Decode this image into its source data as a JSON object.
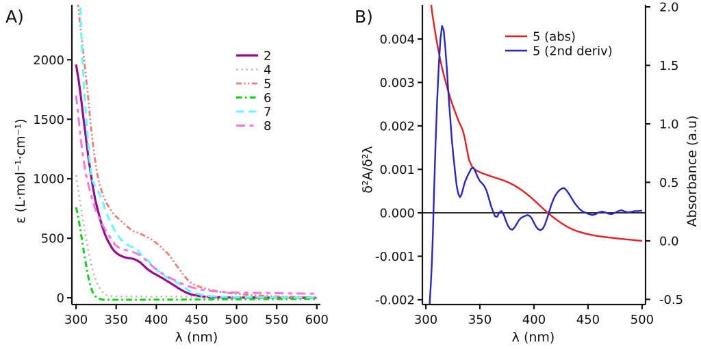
{
  "background": "#ffffff",
  "axis_color": "#111111",
  "chart_data": [
    {
      "id": "A",
      "type": "line",
      "panel_label": "A)",
      "xlabel": "λ (nm)",
      "ylabel": "ε (L·mol⁻¹·cm⁻¹)",
      "x_ticks": [
        300,
        350,
        400,
        450,
        500,
        550,
        600
      ],
      "y_ticks": [
        0,
        500,
        1000,
        1500,
        2000
      ],
      "x_range": [
        294.8,
        604.4
      ],
      "y_range": [
        -57,
        2462
      ],
      "grid": false,
      "legend_position": "top-right",
      "series": [
        {
          "name": "2",
          "color": "#960B96",
          "dash": "solid",
          "width": 3.2,
          "axis": "left",
          "x": [
            300,
            303,
            306,
            309,
            312,
            315,
            318,
            321,
            324,
            327,
            330,
            333,
            336,
            339,
            342,
            345,
            348,
            351,
            354,
            357,
            360,
            364,
            368,
            372,
            376,
            380,
            384,
            388,
            392,
            396,
            400,
            404,
            408,
            412,
            416,
            420,
            424,
            428,
            432,
            436,
            440,
            444,
            448,
            452,
            456,
            460,
            470,
            480,
            500,
            550,
            600
          ],
          "y": [
            1960,
            1840,
            1690,
            1520,
            1360,
            1200,
            1060,
            930,
            820,
            740,
            660,
            592,
            533,
            487,
            451,
            415,
            390,
            372,
            359,
            349,
            341,
            334,
            331,
            326,
            313,
            297,
            272,
            246,
            226,
            208,
            193,
            178,
            163,
            146,
            130,
            113,
            96,
            78,
            62,
            48,
            36,
            27,
            21,
            15,
            12,
            9,
            5,
            3,
            2,
            1,
            0
          ]
        },
        {
          "name": "4",
          "color": "#BFBFBF",
          "dash": "dot",
          "width": 2.8,
          "axis": "left",
          "x": [
            300,
            303,
            306,
            309,
            312,
            315,
            318,
            321,
            324,
            327,
            330,
            333,
            336,
            340,
            345,
            350,
            360,
            380,
            400,
            425,
            450,
            475,
            500,
            550,
            600
          ],
          "y": [
            1030,
            890,
            760,
            640,
            520,
            405,
            305,
            225,
            160,
            112,
            76,
            48,
            28,
            17,
            13,
            12,
            11,
            11,
            10,
            10,
            9,
            8,
            7,
            4,
            2
          ]
        },
        {
          "name": "5",
          "color": "#F9796E",
          "dash": "dashdotdot",
          "width": 2.8,
          "axis": "left",
          "x": [
            300,
            303,
            306,
            309,
            312,
            315,
            318,
            321,
            324,
            327,
            330,
            334,
            338,
            342,
            346,
            350,
            354,
            358,
            362,
            366,
            370,
            374,
            378,
            382,
            386,
            390,
            394,
            398,
            402,
            406,
            410,
            414,
            418,
            422,
            426,
            430,
            434,
            438,
            442,
            446,
            450,
            455,
            460,
            465,
            470,
            480,
            490,
            500,
            520,
            550,
            600
          ],
          "y": [
            2620,
            2430,
            2240,
            2060,
            1880,
            1690,
            1470,
            1290,
            1140,
            1020,
            935,
            855,
            795,
            750,
            710,
            682,
            657,
            634,
            610,
            586,
            564,
            552,
            544,
            532,
            518,
            505,
            489,
            470,
            449,
            426,
            399,
            373,
            341,
            301,
            263,
            226,
            190,
            158,
            131,
            113,
            100,
            90,
            80,
            70,
            62,
            49,
            40,
            33,
            21,
            11,
            4
          ]
        },
        {
          "name": "6",
          "color": "#0CD60C",
          "dash": "dashdot",
          "width": 3.0,
          "axis": "left",
          "x": [
            300,
            302,
            304,
            306,
            308,
            310,
            312,
            314,
            316,
            318,
            320,
            322,
            324,
            326,
            328,
            330,
            333,
            336,
            340,
            345,
            350,
            360,
            380,
            400,
            425,
            450,
            475,
            500,
            550,
            600
          ],
          "y": [
            760,
            700,
            625,
            545,
            460,
            375,
            295,
            220,
            150,
            100,
            58,
            32,
            14,
            2,
            -6,
            -12,
            -16,
            -17,
            -17,
            -17,
            -17,
            -17,
            -17,
            -16,
            -16,
            -15,
            -14,
            -13,
            -11,
            -10
          ]
        },
        {
          "name": "7",
          "color": "#5BFDFD",
          "dash": "longdash",
          "width": 3.0,
          "axis": "left",
          "x": [
            300,
            302,
            305,
            308,
            311,
            314,
            317,
            320,
            323,
            327,
            330,
            333,
            337,
            340,
            343,
            347,
            350,
            353,
            357,
            360,
            365,
            370,
            375,
            380,
            384,
            388,
            392,
            396,
            400,
            404,
            408,
            412,
            416,
            421,
            425,
            429,
            433,
            437,
            441,
            445,
            450,
            455,
            460,
            470,
            480,
            500,
            550,
            600
          ],
          "y": [
            2640,
            2600,
            2480,
            2000,
            1660,
            1390,
            1150,
            990,
            950,
            900,
            858,
            813,
            725,
            680,
            637,
            580,
            549,
            516,
            481,
            465,
            441,
            425,
            414,
            372,
            345,
            322,
            294,
            265,
            240,
            216,
            196,
            176,
            161,
            146,
            131,
            117,
            97,
            77,
            57,
            48,
            37,
            27,
            19,
            12,
            8,
            5,
            2,
            1
          ]
        },
        {
          "name": "8",
          "color": "#F177E3",
          "dash": "dashshortdash",
          "width": 3.0,
          "axis": "left",
          "x": [
            300,
            303,
            306,
            309,
            312,
            315,
            318,
            321,
            324,
            327,
            330,
            334,
            338,
            342,
            345,
            349,
            352,
            356,
            360,
            364,
            368,
            372,
            376,
            380,
            384,
            388,
            392,
            396,
            400,
            405,
            410,
            415,
            420,
            425,
            430,
            435,
            440,
            445,
            450,
            460,
            470,
            480,
            500,
            520,
            550,
            600
          ],
          "y": [
            1700,
            1520,
            1330,
            1170,
            1045,
            960,
            880,
            805,
            745,
            698,
            655,
            600,
            553,
            513,
            483,
            443,
            426,
            412,
            404,
            396,
            389,
            381,
            370,
            355,
            334,
            309,
            284,
            260,
            238,
            213,
            192,
            174,
            157,
            141,
            125,
            110,
            97,
            86,
            77,
            64,
            55,
            49,
            44,
            41,
            38,
            33
          ]
        }
      ]
    },
    {
      "id": "B",
      "type": "line",
      "panel_label": "B)",
      "xlabel": "λ (nm)",
      "ylabel_left": "δ²A/δ²λ",
      "ylabel_right": "Absorbance (a.u)",
      "x_ticks": [
        300,
        350,
        400,
        450,
        500
      ],
      "y_ticks_left": [
        "0.004",
        "0.003",
        "0.002",
        "0.001",
        "0.000",
        "-0.001",
        "-0.002"
      ],
      "y_ticks_right": [
        "2.0",
        "1.5",
        "1.0",
        "0.5",
        "0.0",
        "-0.5"
      ],
      "x_range": [
        296.8,
        503.2
      ],
      "y_range_left": [
        -0.00211,
        0.004787
      ],
      "y_range_right": [
        -0.544,
        2.018
      ],
      "hline_left": 0,
      "grid": false,
      "legend_position": "top-center",
      "series": [
        {
          "name": "5 (abs)",
          "color": "#E81E1E",
          "dash": "solid",
          "width": 2.4,
          "axis": "right",
          "x": [
            304.5,
            306,
            308,
            310,
            312,
            314,
            316,
            318,
            320,
            322,
            324,
            326,
            328,
            330,
            332,
            334,
            336,
            338,
            340,
            343,
            346,
            349,
            352,
            355,
            358,
            361,
            364,
            367,
            370,
            373,
            376,
            379,
            382,
            385,
            388,
            391,
            394,
            397,
            400,
            403,
            406,
            409,
            412,
            415,
            418,
            421,
            424,
            427,
            430,
            433,
            436,
            439,
            442,
            445,
            448,
            452,
            456,
            460,
            465,
            470,
            475,
            480,
            485,
            490,
            495,
            500
          ],
          "y": [
            2.05,
            1.94,
            1.82,
            1.71,
            1.61,
            1.52,
            1.44,
            1.37,
            1.3,
            1.24,
            1.18,
            1.13,
            1.08,
            1.03,
            0.99,
            0.95,
            0.88,
            0.78,
            0.69,
            0.63,
            0.606,
            0.591,
            0.579,
            0.569,
            0.559,
            0.55,
            0.541,
            0.532,
            0.523,
            0.513,
            0.501,
            0.488,
            0.473,
            0.456,
            0.438,
            0.418,
            0.396,
            0.373,
            0.348,
            0.323,
            0.297,
            0.271,
            0.246,
            0.223,
            0.201,
            0.18,
            0.16,
            0.142,
            0.125,
            0.11,
            0.097,
            0.086,
            0.077,
            0.069,
            0.062,
            0.053,
            0.046,
            0.04,
            0.034,
            0.028,
            0.023,
            0.018,
            0.013,
            0.009,
            0.004,
            0.0
          ]
        },
        {
          "name": "5 (2nd deriv)",
          "color": "#2525CD",
          "dash": "solid",
          "width": 2.4,
          "axis": "left",
          "x": [
            303.5,
            304.5,
            305.5,
            306.5,
            307.5,
            309,
            310.5,
            312,
            313.5,
            315,
            316.5,
            318,
            319.5,
            321,
            322.5,
            324,
            325.5,
            327,
            328.5,
            330,
            331.5,
            333,
            334.5,
            336,
            338,
            340,
            342,
            344,
            346,
            348,
            350,
            352,
            354,
            356,
            358,
            360,
            362,
            364,
            366,
            368,
            370,
            372,
            374,
            376,
            378,
            380,
            382,
            384,
            386,
            388,
            390,
            392,
            394,
            396,
            398,
            400,
            402,
            404,
            406,
            408,
            410,
            412,
            414,
            416,
            418,
            420,
            422,
            424,
            426,
            428,
            430,
            432,
            434,
            436,
            438,
            440,
            442,
            444,
            446,
            448,
            451,
            454,
            457,
            460,
            463,
            466,
            469,
            472,
            475,
            478,
            481,
            484,
            487,
            490,
            493,
            496,
            500
          ],
          "y": [
            -0.0021,
            -0.0017,
            -0.0012,
            -0.0005,
            0.0004,
            0.0016,
            0.0026,
            0.0034,
            0.004,
            0.0043,
            0.0042,
            0.0038,
            0.0033,
            0.0027,
            0.0022,
            0.0017,
            0.0013,
            0.00095,
            0.00062,
            0.00044,
            0.00036,
            0.00042,
            0.00056,
            0.0007,
            0.00082,
            0.00092,
            0.00102,
            0.00104,
            0.00094,
            0.00082,
            0.00073,
            0.00068,
            0.00062,
            0.00052,
            0.00036,
            0.00018,
            4e-05,
            -8e-05,
            -9e-05,
            1e-05,
            4e-05,
            -4e-05,
            -0.00018,
            -0.0003,
            -0.00037,
            -0.00039,
            -0.00034,
            -0.00026,
            -0.00017,
            -0.00012,
            -9e-05,
            -7e-05,
            -5e-05,
            -7e-05,
            -0.00013,
            -0.00023,
            -0.00032,
            -0.00038,
            -0.0004,
            -0.00037,
            -0.00028,
            -0.00014,
            2e-05,
            0.00018,
            0.00031,
            0.00041,
            0.00048,
            0.00053,
            0.00056,
            0.00057,
            0.00052,
            0.00045,
            0.00037,
            0.00029,
            0.00021,
            0.00015,
            9e-05,
            5e-05,
            2e-05,
            0.0,
            -3e-05,
            -5e-05,
            -3e-05,
            1e-05,
            3e-05,
            1e-05,
            -2e-05,
            -3e-05,
            0.0,
            4e-05,
            6e-05,
            3e-05,
            1e-05,
            2e-05,
            4e-05,
            4e-05,
            5e-05
          ]
        }
      ]
    }
  ]
}
